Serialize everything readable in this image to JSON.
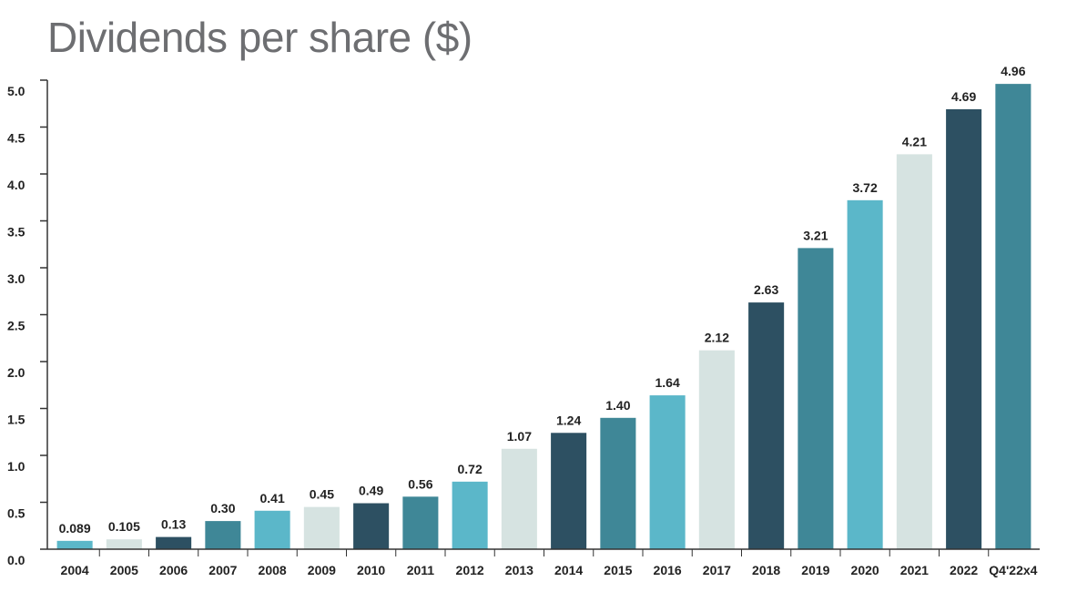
{
  "chart_data": {
    "type": "bar",
    "title": "Dividends per share ($)",
    "xlabel": "",
    "ylabel": "",
    "ylim": [
      0,
      5.0
    ],
    "yticks": [
      "0.0",
      "0.5",
      "1.0",
      "1.5",
      "2.0",
      "2.5",
      "3.0",
      "3.5",
      "4.0",
      "4.5",
      "5.0"
    ],
    "grid": false,
    "legend": "none",
    "categories": [
      "2004",
      "2005",
      "2006",
      "2007",
      "2008",
      "2009",
      "2010",
      "2011",
      "2012",
      "2013",
      "2014",
      "2015",
      "2016",
      "2017",
      "2018",
      "2019",
      "2020",
      "2021",
      "2022",
      "Q4'22x4"
    ],
    "values": [
      0.089,
      0.105,
      0.13,
      0.3,
      0.41,
      0.45,
      0.49,
      0.56,
      0.72,
      1.07,
      1.24,
      1.4,
      1.64,
      2.12,
      2.63,
      3.21,
      3.72,
      4.21,
      4.69,
      4.96
    ],
    "data_labels": [
      "0.089",
      "0.105",
      "0.13",
      "0.30",
      "0.41",
      "0.45",
      "0.49",
      "0.56",
      "0.72",
      "1.07",
      "1.24",
      "1.40",
      "1.64",
      "2.12",
      "2.63",
      "3.21",
      "3.72",
      "4.21",
      "4.69",
      "4.96"
    ],
    "colors": [
      "#5bb7c9",
      "#d6e3e1",
      "#2d5062",
      "#3f8797",
      "#5bb7c9",
      "#d6e3e1",
      "#2d5062",
      "#3f8797",
      "#5bb7c9",
      "#d6e3e1",
      "#2d5062",
      "#3f8797",
      "#5bb7c9",
      "#d6e3e1",
      "#2d5062",
      "#3f8797",
      "#5bb7c9",
      "#d6e3e1",
      "#2d5062",
      "#3f8797"
    ]
  }
}
